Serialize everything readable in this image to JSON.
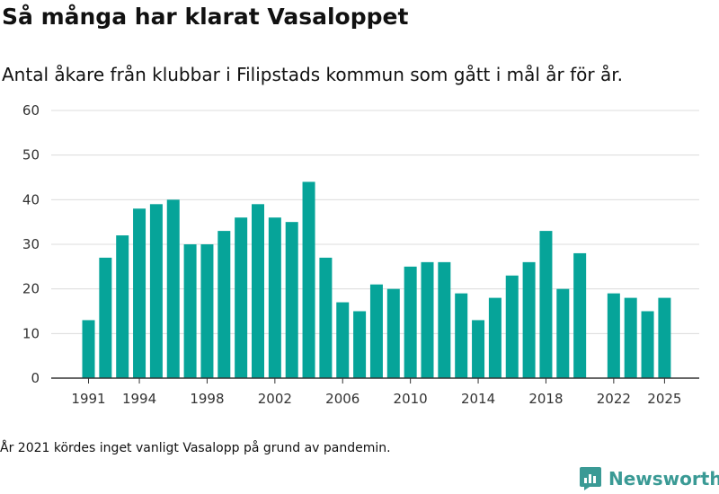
{
  "header": {
    "title": "Så många har klarat Vasaloppet",
    "subtitle": "Antal åkare från klubbar i Filipstads kommun som gått i mål år för år."
  },
  "footnote": "År 2021 kördes inget vanligt Vasalopp på grund av pandemin.",
  "brand": {
    "name": "Newsworthy",
    "icon": "newsworthy-logo-icon",
    "color": "#3a9a95"
  },
  "chart_data": {
    "type": "bar",
    "title": "Så många har klarat Vasaloppet",
    "subtitle": "Antal åkare från klubbar i Filipstads kommun som gått i mål år för år.",
    "xlabel": "",
    "ylabel": "",
    "ylim": [
      0,
      60
    ],
    "yticks": [
      0,
      10,
      20,
      30,
      40,
      50,
      60
    ],
    "xticks": [
      1991,
      1994,
      1998,
      2002,
      2006,
      2010,
      2014,
      2018,
      2022,
      2025
    ],
    "grid": "horizontal",
    "bar_color": "#06a499",
    "series": [
      {
        "name": "Antal åkare",
        "points": [
          {
            "year": 1991,
            "value": 13
          },
          {
            "year": 1992,
            "value": 27
          },
          {
            "year": 1993,
            "value": 32
          },
          {
            "year": 1994,
            "value": 38
          },
          {
            "year": 1995,
            "value": 39
          },
          {
            "year": 1996,
            "value": 40
          },
          {
            "year": 1997,
            "value": 30
          },
          {
            "year": 1998,
            "value": 30
          },
          {
            "year": 1999,
            "value": 33
          },
          {
            "year": 2000,
            "value": 36
          },
          {
            "year": 2001,
            "value": 39
          },
          {
            "year": 2002,
            "value": 36
          },
          {
            "year": 2003,
            "value": 35
          },
          {
            "year": 2004,
            "value": 44
          },
          {
            "year": 2005,
            "value": 27
          },
          {
            "year": 2006,
            "value": 17
          },
          {
            "year": 2007,
            "value": 15
          },
          {
            "year": 2008,
            "value": 21
          },
          {
            "year": 2009,
            "value": 20
          },
          {
            "year": 2010,
            "value": 25
          },
          {
            "year": 2011,
            "value": 26
          },
          {
            "year": 2012,
            "value": 26
          },
          {
            "year": 2013,
            "value": 19
          },
          {
            "year": 2014,
            "value": 13
          },
          {
            "year": 2015,
            "value": 18
          },
          {
            "year": 2016,
            "value": 23
          },
          {
            "year": 2017,
            "value": 26
          },
          {
            "year": 2018,
            "value": 33
          },
          {
            "year": 2019,
            "value": 20
          },
          {
            "year": 2020,
            "value": 28
          },
          {
            "year": 2022,
            "value": 19
          },
          {
            "year": 2023,
            "value": 18
          },
          {
            "year": 2024,
            "value": 15
          },
          {
            "year": 2025,
            "value": 18
          }
        ]
      }
    ]
  }
}
